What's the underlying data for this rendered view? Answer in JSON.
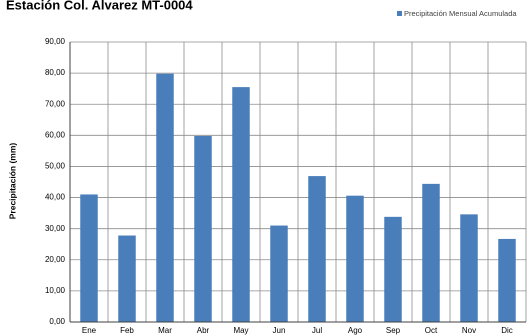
{
  "chart_data": {
    "type": "bar",
    "title": "Estación Col. Alvarez MT-0004",
    "xlabel": "",
    "ylabel": "Precipitación (mm)",
    "categories": [
      "Ene",
      "Feb",
      "Mar",
      "Abr",
      "May",
      "Jun",
      "Jul",
      "Ago",
      "Sep",
      "Oct",
      "Nov",
      "Dic"
    ],
    "series": [
      {
        "name": "Precipitación Mensual Acumulada",
        "values": [
          41.0,
          27.8,
          79.8,
          59.8,
          75.5,
          31.0,
          46.9,
          40.6,
          33.8,
          44.4,
          34.6,
          26.7
        ],
        "color": "#4a7ebb"
      }
    ],
    "ylim": [
      0,
      90
    ],
    "yticks": [
      "0,00",
      "10,00",
      "20,00",
      "30,00",
      "40,00",
      "50,00",
      "60,00",
      "70,00",
      "80,00",
      "90,00"
    ],
    "grid": "horizontal and vertical",
    "legend": "top-right"
  }
}
